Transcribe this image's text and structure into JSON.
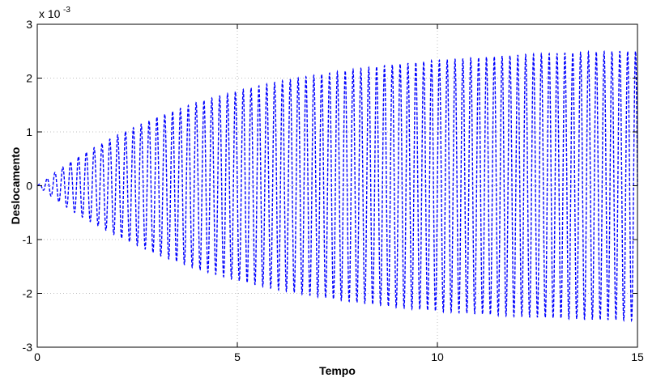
{
  "chart_data": {
    "type": "line",
    "xlabel": "Tempo",
    "ylabel": "Deslocamento",
    "xlim": [
      0,
      15
    ],
    "ylim": [
      -0.003,
      0.003
    ],
    "x_ticks": [
      0,
      5,
      10,
      15
    ],
    "y_ticks": [
      -3,
      -2,
      -1,
      0,
      1,
      2,
      3
    ],
    "y_multiplier_base": "x 10",
    "y_multiplier_exponent": "-3",
    "y_multiplier_value": 0.001,
    "grid": true,
    "line_style": "dashed",
    "line_color": "#0000ff",
    "series": [
      {
        "frequency_hz": 5.1,
        "envelope_time": [
          0,
          0.5,
          1,
          1.5,
          2,
          3,
          4,
          5,
          6,
          7,
          8,
          9,
          10,
          11,
          12,
          13,
          14,
          15
        ],
        "envelope_amplitude": [
          0,
          0.00028,
          0.00053,
          0.00074,
          0.00094,
          0.00128,
          0.00155,
          0.00176,
          0.00193,
          0.00206,
          0.00217,
          0.00226,
          0.00233,
          0.00238,
          0.00243,
          0.00246,
          0.00249,
          0.0025
        ]
      }
    ]
  }
}
